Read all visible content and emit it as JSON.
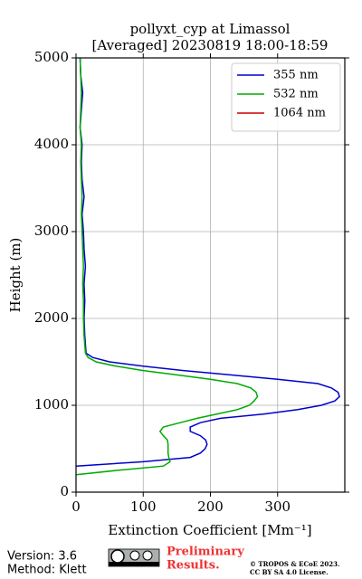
{
  "chart_data": {
    "type": "line",
    "title": "pollyxt_cyp at Limassol",
    "subtitle": "[Averaged] 20230819 18:00-18:59",
    "x_label": "Extinction Coefficient [Mm⁻¹]",
    "y_label": "Height (m)",
    "xlim": [
      0,
      400
    ],
    "xticks": [
      0,
      100,
      200,
      300
    ],
    "ylim": [
      0,
      5000
    ],
    "yticks": [
      0,
      1000,
      2000,
      3000,
      4000,
      5000
    ],
    "grid": true,
    "legend": "upper right",
    "heights": [
      200,
      250,
      300,
      350,
      400,
      450,
      500,
      550,
      600,
      650,
      700,
      750,
      800,
      850,
      900,
      950,
      1000,
      1050,
      1100,
      1150,
      1200,
      1250,
      1300,
      1350,
      1400,
      1450,
      1500,
      1550,
      1600,
      1800,
      2000,
      2200,
      2400,
      2600,
      2800,
      3000,
      3200,
      3400,
      3600,
      3800,
      4000,
      4200,
      4400,
      4600,
      4800,
      5000
    ],
    "series": [
      {
        "name": "355 nm",
        "color": "#0000cc",
        "values": [
          null,
          null,
          0,
          100,
          170,
          185,
          192,
          195,
          193,
          185,
          170,
          170,
          185,
          215,
          280,
          330,
          365,
          385,
          392,
          390,
          380,
          360,
          300,
          230,
          160,
          100,
          50,
          25,
          15,
          13,
          12,
          13,
          12,
          14,
          12,
          11,
          9,
          12,
          9,
          8,
          9,
          6,
          8,
          10,
          7,
          6
        ]
      },
      {
        "name": "532 nm",
        "color": "#00aa00",
        "values": [
          0,
          60,
          130,
          140,
          138,
          137,
          137,
          137,
          136,
          130,
          125,
          130,
          155,
          180,
          210,
          240,
          258,
          265,
          270,
          268,
          260,
          240,
          200,
          150,
          100,
          60,
          30,
          18,
          14,
          12,
          11,
          11,
          10,
          11,
          10,
          9,
          8,
          9,
          8,
          7,
          8,
          6,
          7,
          8,
          7,
          6
        ]
      },
      {
        "name": "1064 nm",
        "color": "#cc0000",
        "values": [
          null,
          null,
          null,
          null,
          null,
          null,
          null,
          null,
          null,
          null,
          null,
          null,
          null,
          null,
          null,
          null,
          null,
          null,
          null,
          null,
          null,
          null,
          null,
          null,
          null,
          null,
          null,
          null,
          null,
          null,
          null,
          null,
          null,
          null,
          null,
          null,
          null,
          null,
          null,
          null,
          null,
          null,
          null,
          null,
          null,
          null
        ]
      }
    ]
  },
  "footer": {
    "version": "Version: 3.6",
    "method": "Method: Klett",
    "preliminary_1": "Preliminary",
    "preliminary_2": "Results.",
    "copyright_1": "© TROPOS & ECoE 2023.",
    "copyright_2": "CC BY SA 4.0 License."
  }
}
